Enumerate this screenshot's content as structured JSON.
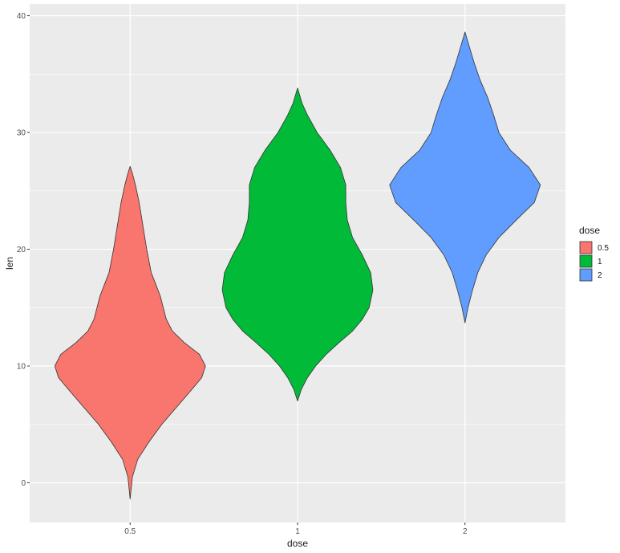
{
  "chart_data": {
    "type": "violin",
    "xlabel": "dose",
    "ylabel": "len",
    "categories": [
      "0.5",
      "1",
      "2"
    ],
    "ylim": [
      -3.4,
      41
    ],
    "y_ticks": [
      0,
      10,
      20,
      30,
      40
    ],
    "grid": true,
    "legend": {
      "title": "dose",
      "position": "right",
      "entries": [
        "0.5",
        "1",
        "2"
      ]
    },
    "colors": {
      "0.5": "#F8766D",
      "1": "#00BA38",
      "2": "#619CFF"
    },
    "series": [
      {
        "name": "0.5",
        "y_range": [
          -1.4,
          27.1
        ],
        "profile": [
          [
            -1.4,
            0
          ],
          [
            0.5,
            0.03
          ],
          [
            2,
            0.1
          ],
          [
            3.5,
            0.25
          ],
          [
            5,
            0.42
          ],
          [
            6.5,
            0.62
          ],
          [
            8,
            0.82
          ],
          [
            9,
            0.95
          ],
          [
            10,
            1.0
          ],
          [
            11,
            0.92
          ],
          [
            12,
            0.72
          ],
          [
            13,
            0.56
          ],
          [
            14,
            0.48
          ],
          [
            15,
            0.44
          ],
          [
            16,
            0.4
          ],
          [
            17,
            0.34
          ],
          [
            18,
            0.28
          ],
          [
            20,
            0.22
          ],
          [
            22,
            0.17
          ],
          [
            24,
            0.12
          ],
          [
            25.5,
            0.07
          ],
          [
            26.5,
            0.03
          ],
          [
            27.1,
            0
          ]
        ]
      },
      {
        "name": "1",
        "y_range": [
          7.0,
          33.8
        ],
        "profile": [
          [
            7,
            0
          ],
          [
            8,
            0.05
          ],
          [
            9,
            0.13
          ],
          [
            10,
            0.24
          ],
          [
            11,
            0.38
          ],
          [
            12,
            0.55
          ],
          [
            13,
            0.73
          ],
          [
            14,
            0.86
          ],
          [
            15,
            0.95
          ],
          [
            16.5,
            1.0
          ],
          [
            18,
            0.97
          ],
          [
            19.5,
            0.86
          ],
          [
            21,
            0.73
          ],
          [
            22.5,
            0.66
          ],
          [
            24,
            0.64
          ],
          [
            25.5,
            0.64
          ],
          [
            27,
            0.57
          ],
          [
            28.5,
            0.43
          ],
          [
            30,
            0.26
          ],
          [
            31.5,
            0.13
          ],
          [
            32.5,
            0.06
          ],
          [
            33.8,
            0
          ]
        ]
      },
      {
        "name": "2",
        "y_range": [
          13.7,
          38.6
        ],
        "profile": [
          [
            13.7,
            0
          ],
          [
            15,
            0.04
          ],
          [
            16.5,
            0.1
          ],
          [
            18,
            0.17
          ],
          [
            19.5,
            0.28
          ],
          [
            21,
            0.45
          ],
          [
            22.5,
            0.68
          ],
          [
            24,
            0.92
          ],
          [
            25.5,
            1.0
          ],
          [
            27,
            0.85
          ],
          [
            28.5,
            0.6
          ],
          [
            30,
            0.45
          ],
          [
            31.5,
            0.38
          ],
          [
            33,
            0.3
          ],
          [
            34.5,
            0.2
          ],
          [
            36,
            0.12
          ],
          [
            37.5,
            0.05
          ],
          [
            38.6,
            0
          ]
        ]
      }
    ]
  }
}
